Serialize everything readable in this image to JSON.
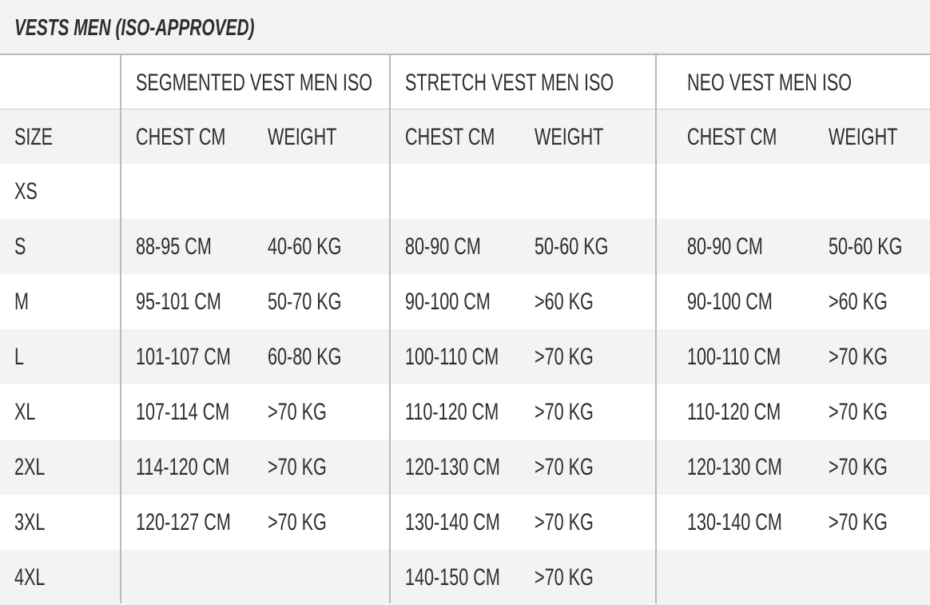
{
  "title": "VESTS MEN (ISO-APPROVED)",
  "table": {
    "groups": [
      "SEGMENTED VEST MEN ISO",
      "STRETCH VEST MEN ISO",
      "NEO VEST MEN ISO"
    ],
    "columns": [
      "SIZE",
      "CHEST CM",
      "WEIGHT",
      "CHEST CM",
      "WEIGHT",
      "CHEST CM",
      "WEIGHT"
    ],
    "rows": [
      [
        "XS",
        null,
        null,
        null,
        null,
        null,
        null
      ],
      [
        "S",
        "88-95 CM",
        "40-60 KG",
        "80-90 CM",
        "50-60 KG",
        "80-90 CM",
        "50-60 KG"
      ],
      [
        "M",
        "95-101 CM",
        "50-70 KG",
        "90-100 CM",
        ">60 KG",
        "90-100 CM",
        ">60 KG"
      ],
      [
        "L",
        "101-107 CM",
        "60-80 KG",
        "100-110 CM",
        ">70 KG",
        "100-110 CM",
        ">70 KG"
      ],
      [
        "XL",
        "107-114 CM",
        ">70 KG",
        "110-120 CM",
        ">70 KG",
        "110-120 CM",
        ">70 KG"
      ],
      [
        "2XL",
        "114-120 CM",
        ">70 KG",
        "120-130 CM",
        ">70 KG",
        "120-130 CM",
        ">70 KG"
      ],
      [
        "3XL",
        "120-127 CM",
        ">70 KG",
        "130-140 CM",
        ">70 KG",
        "130-140 CM",
        ">70 KG"
      ],
      [
        "4XL",
        null,
        null,
        "140-150 CM",
        ">70 KG",
        null,
        null
      ]
    ]
  }
}
